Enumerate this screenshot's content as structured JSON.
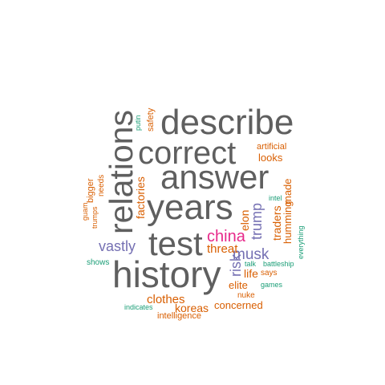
{
  "colors": {
    "gray": "#5f5f5f",
    "orange": "#d95f02",
    "purple": "#7570b3",
    "teal": "#1b9e77",
    "magenta": "#e7298a"
  },
  "words": {
    "describe": "describe",
    "correct": "correct",
    "answer": "answer",
    "years": "years",
    "test": "test",
    "history": "history",
    "relations": "relations",
    "china": "china",
    "musk": "musk",
    "vastly": "vastly",
    "trump": "trump",
    "risk": "risk",
    "elon": "elon",
    "factories": "factories",
    "threat": "threat",
    "traders": "traders",
    "humming": "humming",
    "made": "made",
    "looks": "looks",
    "artificial": "artificial",
    "safety": "safety",
    "putin": "putin",
    "bigger": "bigger",
    "needs": "needs",
    "guam": "guam",
    "trumps": "trumps",
    "shows": "shows",
    "life": "life",
    "says": "says",
    "elite": "elite",
    "nuke": "nuke",
    "clothes": "clothes",
    "koreas": "koreas",
    "concerned": "concerned",
    "indicates": "indicates",
    "intelligence": "intelligence",
    "talk": "talk",
    "battleship": "battleship",
    "games": "games",
    "intel": "intel",
    "everything": "everything"
  }
}
